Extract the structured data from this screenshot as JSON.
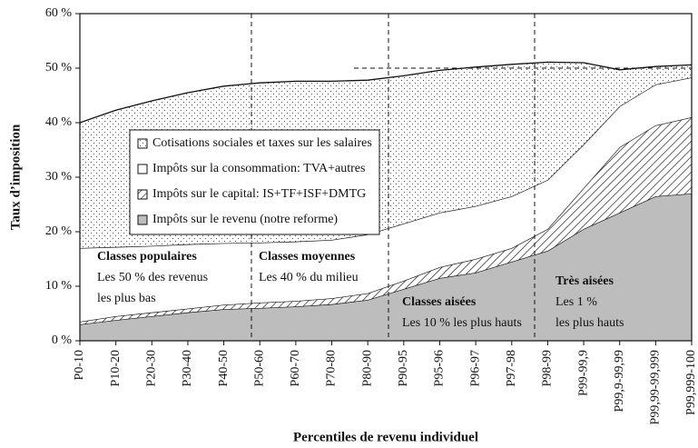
{
  "chart_data": {
    "type": "stacked_area",
    "x_label": "Percentiles de revenu individuel",
    "y_label": "Taux d’imposition",
    "categories": [
      "P0-10",
      "P10-20",
      "P20-30",
      "P30-40",
      "P40-50",
      "P50-60",
      "P60-70",
      "P70-80",
      "P80-90",
      "P90-95",
      "P95-96",
      "P96-97",
      "P97-98",
      "P98-99",
      "P99-99,9",
      "P99,9-99,99",
      "P99,99-99,999",
      "P99,999-100"
    ],
    "series": [
      {
        "name": "Impôts sur le revenu (notre reforme)",
        "color": "#bdbdbd",
        "pattern": "solid",
        "values": [
          3,
          3.8,
          4.5,
          5.2,
          5.8,
          6.0,
          6.3,
          6.7,
          7.5,
          9.5,
          11.5,
          12.5,
          14.5,
          16.5,
          20.5,
          23.5,
          26.5,
          27
        ]
      },
      {
        "name": "Impôts sur le capital: IS+TF+ISF+DMTG",
        "color": "#ffffff",
        "pattern": "hatch",
        "values": [
          0.5,
          0.7,
          0.7,
          0.7,
          0.8,
          1.0,
          1.0,
          1.1,
          1.2,
          1.5,
          2.0,
          2.5,
          2.5,
          4.0,
          7.5,
          12,
          13,
          14
        ]
      },
      {
        "name": "Impôts sur la consommation: TVA+autres",
        "color": "#ffffff",
        "pattern": "none",
        "values": [
          13.5,
          12.7,
          12.2,
          11.8,
          11.3,
          11.0,
          10.9,
          10.7,
          10.8,
          10.5,
          10.0,
          9.7,
          9.5,
          9.0,
          8.0,
          7.5,
          7.5,
          7.3
        ]
      },
      {
        "name": "Cotisations sociales et taxes sur les salaires",
        "color": "#ffffff",
        "pattern": "dots",
        "values": [
          23,
          25.1,
          26.6,
          27.8,
          28.8,
          29.3,
          29.4,
          29.1,
          28.3,
          27.1,
          26.1,
          25.5,
          24.2,
          21.6,
          15,
          6.7,
          3.3,
          2.3
        ]
      }
    ],
    "ylim": [
      0,
      60
    ],
    "yticks": [
      {
        "value": 0,
        "label": "0 %"
      },
      {
        "value": 10,
        "label": "10 %"
      },
      {
        "value": 20,
        "label": "20 %"
      },
      {
        "value": 30,
        "label": "30 %"
      },
      {
        "value": 40,
        "label": "40 %"
      },
      {
        "value": 50,
        "label": "50 %"
      },
      {
        "value": 60,
        "label": "60 %"
      }
    ],
    "reference_lines": [
      50
    ],
    "annotations": [
      {
        "title": "Classes populaires",
        "lines": [
          "Les 50 % des revenus",
          "les plus bas"
        ]
      },
      {
        "title": "Classes moyennes",
        "lines": [
          "Les 40 % du milieu"
        ]
      },
      {
        "title": "Classes aisées",
        "lines": [
          "Les 10 % les plus hauts"
        ]
      },
      {
        "title": "Très aisées",
        "lines": [
          "Les 1 %",
          "les plus hauts"
        ]
      }
    ]
  }
}
